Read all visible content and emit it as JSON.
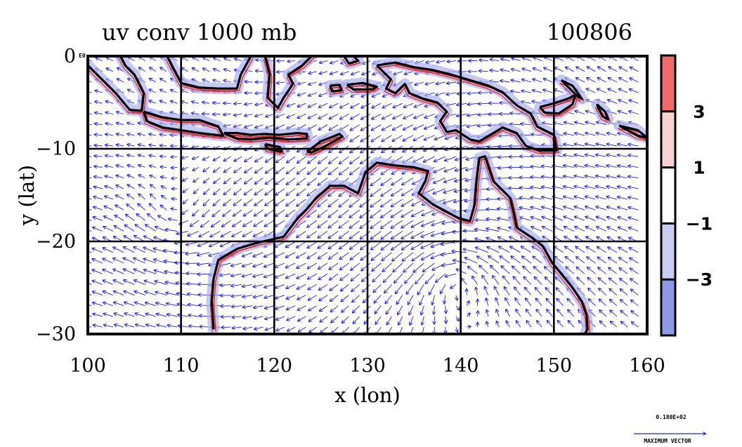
{
  "chart_data": {
    "type": "vector-field-map",
    "title_left": "uv conv 1000 mb",
    "title_right": "100806",
    "xlabel": "x (lon)",
    "ylabel": "y (lat)",
    "xlim": [
      100,
      160
    ],
    "ylim": [
      -30,
      0
    ],
    "xticks": [
      100,
      110,
      120,
      130,
      140,
      150,
      160
    ],
    "yticks": [
      0,
      -10,
      -20,
      -30
    ],
    "xtick_labels": [
      "100",
      "110",
      "120",
      "130",
      "140",
      "150",
      "160"
    ],
    "ytick_labels": [
      "0",
      "−10",
      "−20",
      "−30"
    ],
    "y_top_suffix": "E0",
    "grid": true,
    "colorbar": {
      "levels": [
        3,
        1,
        -1,
        -3
      ],
      "labels": [
        "3",
        "1",
        "−1",
        "−3"
      ],
      "colors": [
        "#f06a6a",
        "#f8d2d2",
        "#ffffff",
        "#c9cdf2",
        "#8f97e6"
      ]
    },
    "reference_vector": {
      "value": "0.180E+02",
      "label": "MAXIMUM VECTOR"
    },
    "colors": {
      "vector": "#2020e8",
      "positive_contour": "#e61c1c",
      "negative_fill": "#aab2ee",
      "coast": "#000000"
    },
    "coastlines": [
      {
        "name": "Australia",
        "points": [
          [
            113.5,
            -29.5
          ],
          [
            113.3,
            -26.5
          ],
          [
            113.5,
            -24.0
          ],
          [
            114.0,
            -22.0
          ],
          [
            116.0,
            -20.8
          ],
          [
            118.0,
            -20.2
          ],
          [
            121.0,
            -19.5
          ],
          [
            122.5,
            -17.5
          ],
          [
            123.5,
            -16.5
          ],
          [
            124.5,
            -15.3
          ],
          [
            126.0,
            -14.0
          ],
          [
            127.5,
            -14.0
          ],
          [
            129.0,
            -14.8
          ],
          [
            129.8,
            -12.5
          ],
          [
            131.0,
            -11.5
          ],
          [
            133.0,
            -11.8
          ],
          [
            135.0,
            -12.0
          ],
          [
            136.5,
            -12.4
          ],
          [
            136.2,
            -13.5
          ],
          [
            135.5,
            -14.8
          ],
          [
            137.0,
            -16.0
          ],
          [
            138.5,
            -16.8
          ],
          [
            139.8,
            -17.5
          ],
          [
            141.0,
            -17.8
          ],
          [
            141.5,
            -16.0
          ],
          [
            141.7,
            -13.5
          ],
          [
            142.0,
            -11.0
          ],
          [
            142.6,
            -10.8
          ],
          [
            143.5,
            -13.5
          ],
          [
            144.5,
            -14.5
          ],
          [
            145.3,
            -15.3
          ],
          [
            145.7,
            -17.0
          ],
          [
            146.0,
            -18.5
          ],
          [
            147.5,
            -19.5
          ],
          [
            148.8,
            -20.5
          ],
          [
            149.8,
            -22.3
          ],
          [
            150.8,
            -23.5
          ],
          [
            152.0,
            -25.0
          ],
          [
            153.0,
            -26.5
          ],
          [
            153.5,
            -28.0
          ],
          [
            153.6,
            -29.5
          ],
          [
            153.3,
            -30.0
          ]
        ]
      },
      {
        "name": "New Guinea",
        "points": [
          [
            131.0,
            -1.0
          ],
          [
            133.0,
            -0.7
          ],
          [
            135.0,
            -1.2
          ],
          [
            137.0,
            -1.5
          ],
          [
            139.0,
            -2.0
          ],
          [
            141.0,
            -2.6
          ],
          [
            143.0,
            -3.2
          ],
          [
            144.5,
            -3.9
          ],
          [
            146.0,
            -5.3
          ],
          [
            147.5,
            -6.2
          ],
          [
            148.2,
            -7.6
          ],
          [
            150.0,
            -8.5
          ],
          [
            150.3,
            -10.2
          ],
          [
            148.5,
            -10.2
          ],
          [
            147.0,
            -9.7
          ],
          [
            146.0,
            -8.3
          ],
          [
            144.5,
            -7.7
          ],
          [
            143.0,
            -8.6
          ],
          [
            142.0,
            -9.2
          ],
          [
            141.0,
            -9.0
          ],
          [
            139.5,
            -8.0
          ],
          [
            138.5,
            -8.2
          ],
          [
            137.8,
            -7.0
          ],
          [
            138.5,
            -6.0
          ],
          [
            137.5,
            -5.0
          ],
          [
            136.0,
            -4.6
          ],
          [
            134.5,
            -4.0
          ],
          [
            134.0,
            -3.0
          ],
          [
            133.0,
            -4.0
          ],
          [
            132.0,
            -3.5
          ],
          [
            132.5,
            -2.5
          ],
          [
            131.0,
            -1.0
          ]
        ]
      },
      {
        "name": "Sumatra",
        "points": [
          [
            100.0,
            -1.0
          ],
          [
            101.5,
            -2.5
          ],
          [
            103.0,
            -4.0
          ],
          [
            104.5,
            -5.8
          ],
          [
            105.8,
            -5.9
          ],
          [
            106.0,
            -4.0
          ],
          [
            105.0,
            -2.0
          ],
          [
            104.0,
            -1.0
          ],
          [
            103.5,
            0.0
          ]
        ]
      },
      {
        "name": "Java",
        "points": [
          [
            106.0,
            -6.0
          ],
          [
            108.0,
            -6.6
          ],
          [
            110.0,
            -6.9
          ],
          [
            112.0,
            -6.9
          ],
          [
            114.0,
            -7.6
          ],
          [
            114.5,
            -8.6
          ],
          [
            112.0,
            -8.3
          ],
          [
            110.0,
            -8.0
          ],
          [
            108.0,
            -7.7
          ],
          [
            106.3,
            -7.0
          ],
          [
            106.0,
            -6.0
          ]
        ]
      },
      {
        "name": "Borneo",
        "points": [
          [
            108.5,
            0.0
          ],
          [
            109.0,
            -1.0
          ],
          [
            110.0,
            -2.9
          ],
          [
            112.0,
            -3.4
          ],
          [
            114.0,
            -3.5
          ],
          [
            116.0,
            -3.5
          ],
          [
            116.4,
            -2.0
          ],
          [
            117.5,
            0.0
          ]
        ]
      },
      {
        "name": "Sulawesi",
        "points": [
          [
            119.0,
            0.0
          ],
          [
            119.5,
            -2.0
          ],
          [
            119.3,
            -4.5
          ],
          [
            120.4,
            -5.6
          ],
          [
            121.0,
            -4.5
          ],
          [
            122.0,
            -3.0
          ],
          [
            121.5,
            -2.0
          ],
          [
            123.0,
            -1.0
          ],
          [
            124.5,
            0.5
          ]
        ]
      },
      {
        "name": "Lesser Sunda",
        "points": [
          [
            114.6,
            -8.3
          ],
          [
            116.0,
            -8.3
          ],
          [
            117.5,
            -8.5
          ],
          [
            119.0,
            -8.4
          ],
          [
            120.5,
            -8.5
          ],
          [
            122.5,
            -8.3
          ],
          [
            123.5,
            -8.4
          ],
          [
            123.5,
            -8.9
          ],
          [
            121.5,
            -9.0
          ],
          [
            119.5,
            -8.8
          ],
          [
            117.5,
            -9.0
          ],
          [
            116.0,
            -8.9
          ],
          [
            114.6,
            -8.3
          ]
        ]
      },
      {
        "name": "Sumba",
        "points": [
          [
            119.0,
            -9.5
          ],
          [
            120.6,
            -9.8
          ],
          [
            120.8,
            -10.3
          ],
          [
            119.3,
            -10.0
          ],
          [
            119.0,
            -9.5
          ]
        ]
      },
      {
        "name": "Timor",
        "points": [
          [
            123.5,
            -10.3
          ],
          [
            125.0,
            -9.2
          ],
          [
            127.0,
            -8.4
          ],
          [
            127.3,
            -8.7
          ],
          [
            125.5,
            -9.7
          ],
          [
            124.0,
            -10.4
          ],
          [
            123.5,
            -10.3
          ]
        ]
      },
      {
        "name": "Halmahera",
        "points": [
          [
            127.5,
            0.0
          ],
          [
            128.0,
            -0.8
          ],
          [
            129.0,
            -0.5
          ],
          [
            128.5,
            0.0
          ]
        ]
      },
      {
        "name": "Seram",
        "points": [
          [
            127.8,
            -3.1
          ],
          [
            129.5,
            -2.9
          ],
          [
            131.0,
            -3.3
          ],
          [
            130.5,
            -3.6
          ],
          [
            128.5,
            -3.6
          ],
          [
            127.8,
            -3.1
          ]
        ]
      },
      {
        "name": "Buru",
        "points": [
          [
            126.0,
            -3.2
          ],
          [
            127.0,
            -3.1
          ],
          [
            127.2,
            -3.7
          ],
          [
            126.2,
            -3.8
          ],
          [
            126.0,
            -3.2
          ]
        ]
      },
      {
        "name": "New Britain",
        "points": [
          [
            148.5,
            -5.5
          ],
          [
            150.0,
            -5.1
          ],
          [
            151.5,
            -4.6
          ],
          [
            152.3,
            -4.2
          ],
          [
            152.0,
            -5.2
          ],
          [
            150.5,
            -6.2
          ],
          [
            149.0,
            -6.1
          ],
          [
            148.5,
            -5.5
          ]
        ]
      },
      {
        "name": "Bougainville",
        "points": [
          [
            154.6,
            -5.2
          ],
          [
            155.5,
            -6.0
          ],
          [
            155.8,
            -6.8
          ],
          [
            155.2,
            -6.5
          ],
          [
            154.6,
            -5.2
          ]
        ]
      },
      {
        "name": "Solomon",
        "points": [
          [
            157.0,
            -7.5
          ],
          [
            159.0,
            -8.0
          ],
          [
            160.0,
            -8.8
          ],
          [
            159.0,
            -8.6
          ],
          [
            157.0,
            -7.5
          ]
        ]
      },
      {
        "name": "New Ireland",
        "points": [
          [
            150.8,
            -2.6
          ],
          [
            152.0,
            -3.2
          ],
          [
            153.0,
            -4.6
          ],
          [
            152.5,
            -4.3
          ],
          [
            151.5,
            -3.3
          ],
          [
            150.8,
            -2.6
          ]
        ]
      }
    ]
  }
}
